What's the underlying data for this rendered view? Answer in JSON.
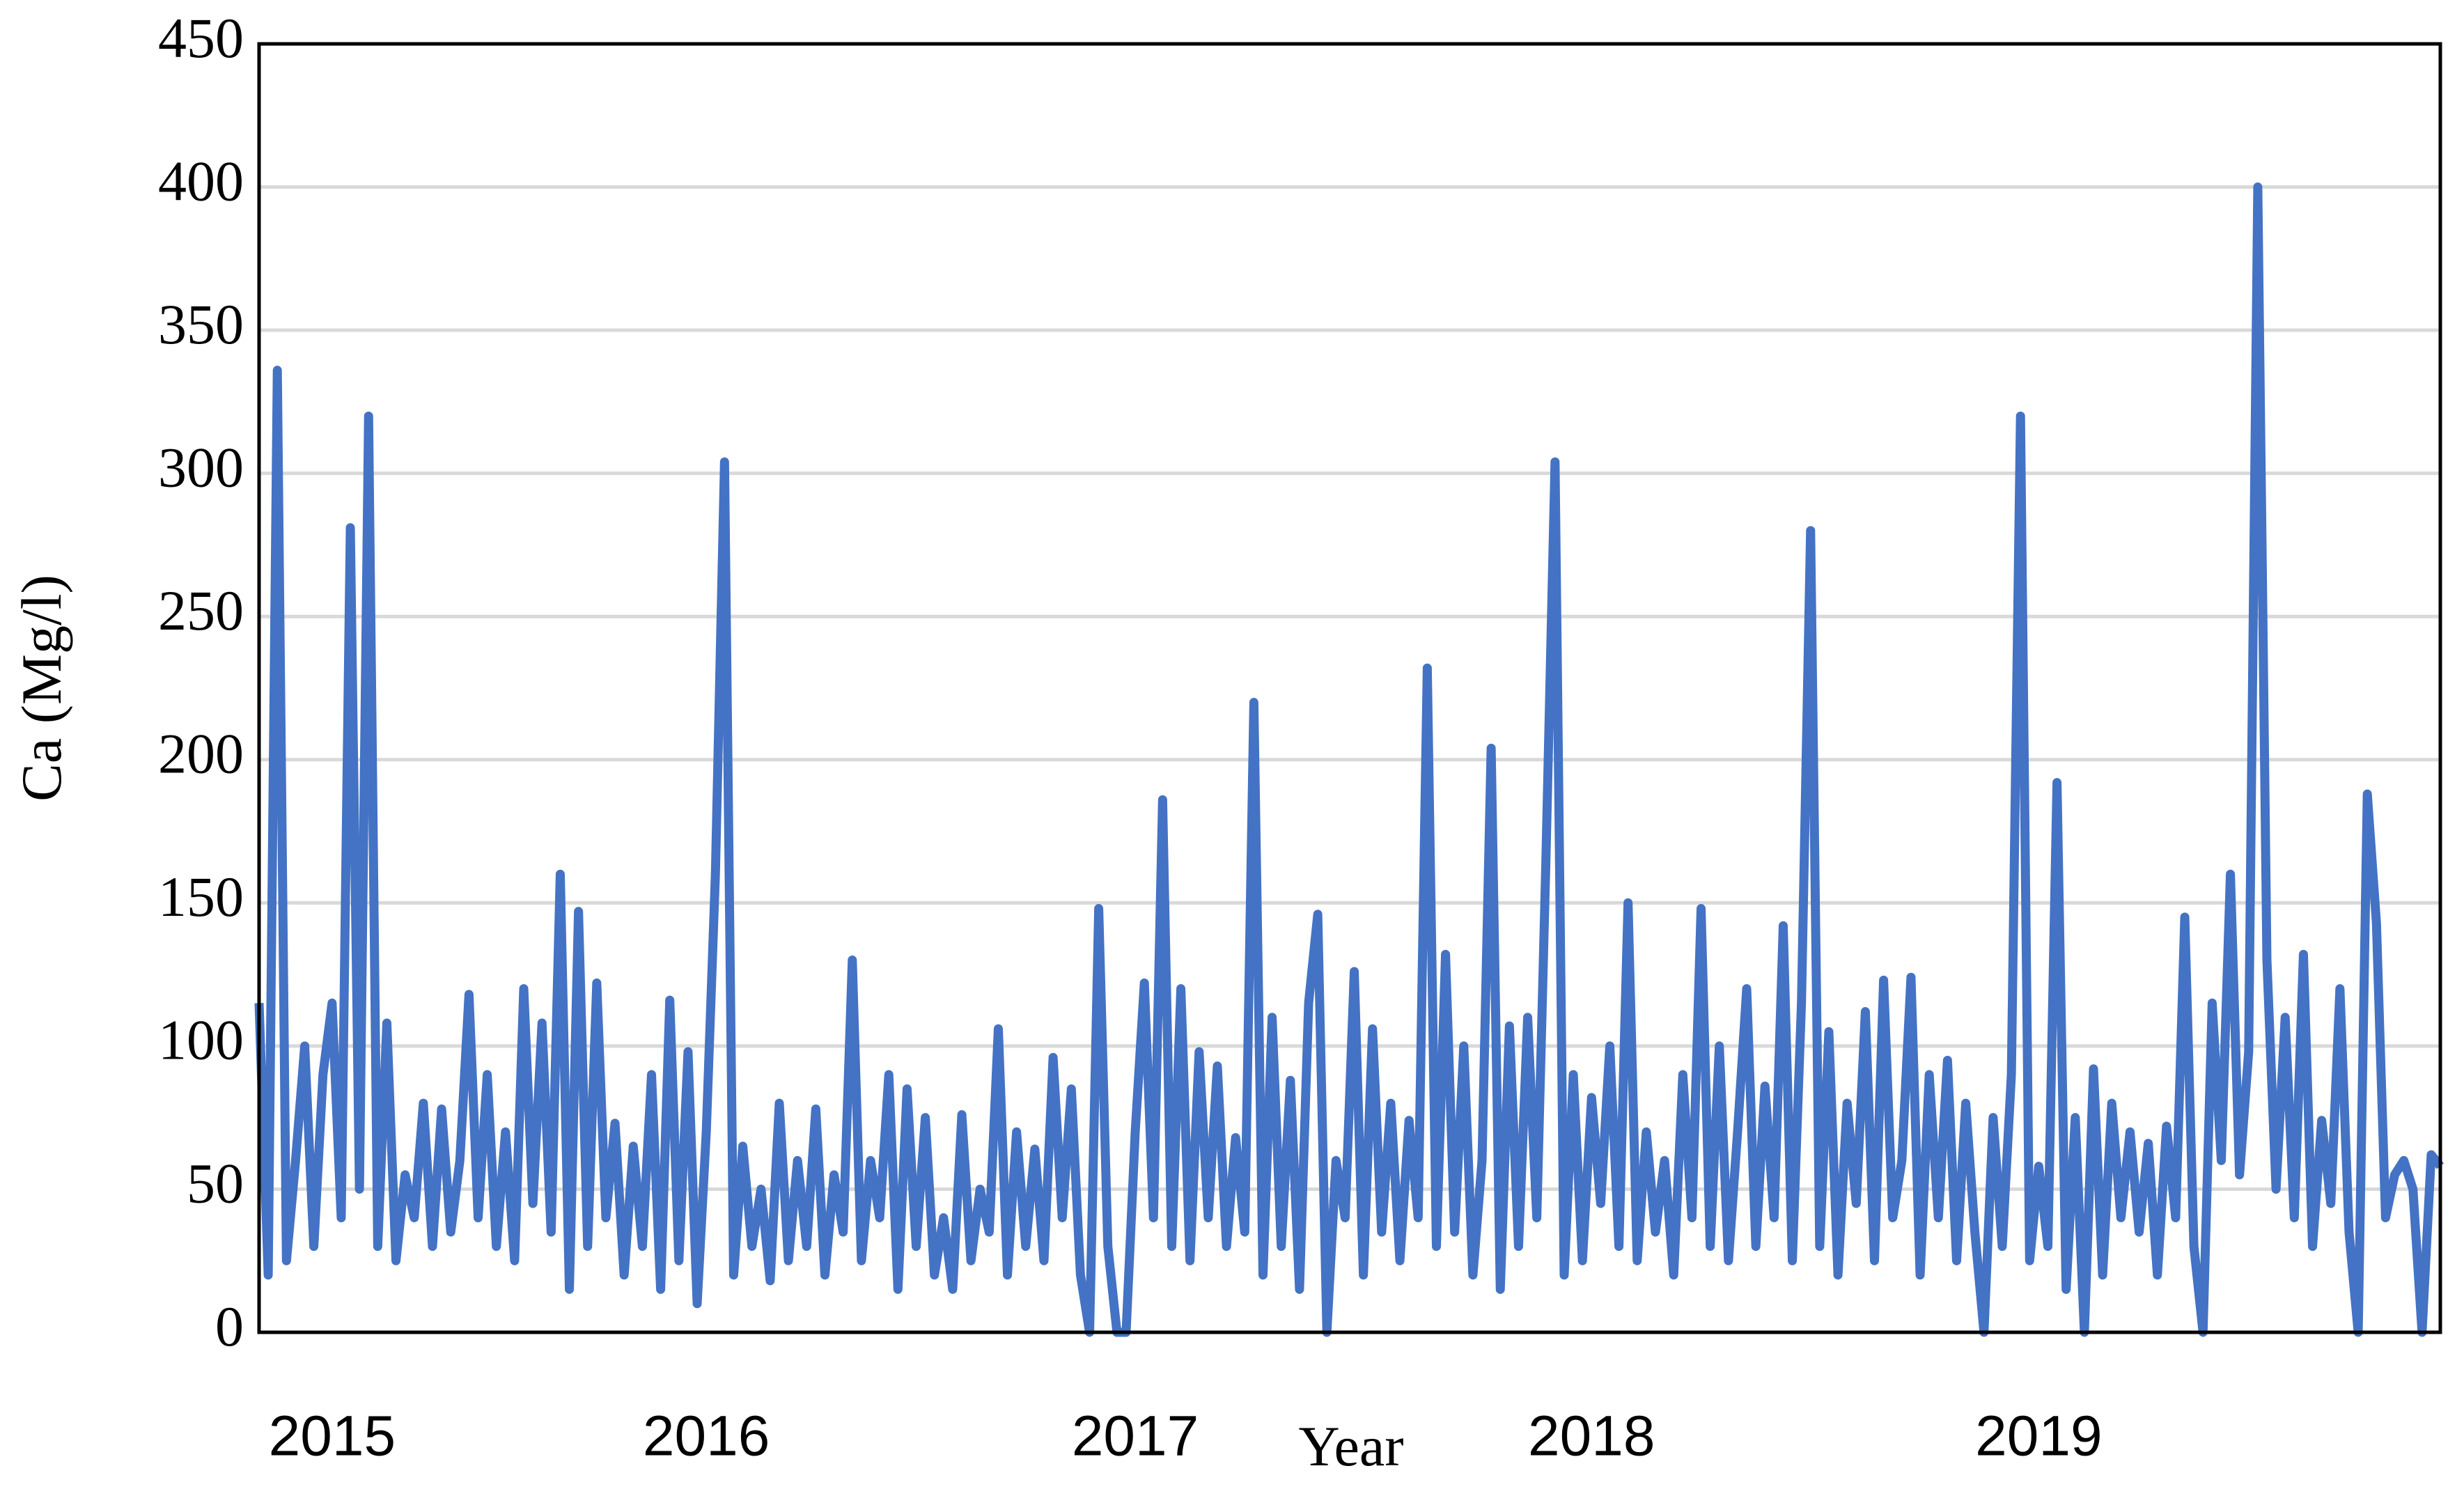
{
  "chart_data": {
    "type": "line",
    "x_label": "Year",
    "y_label": "Ca (Mg/l)",
    "x": [
      0,
      1,
      2,
      3,
      4,
      5,
      6,
      7,
      8,
      9,
      10,
      11,
      12,
      13,
      14,
      15,
      16,
      17,
      18,
      19,
      20,
      21,
      22,
      23,
      24,
      25,
      26,
      27,
      28,
      29,
      30,
      31,
      32,
      33,
      34,
      35,
      36,
      37,
      38,
      39,
      40,
      41,
      42,
      43,
      44,
      45,
      46,
      47,
      48,
      49,
      50,
      51,
      52,
      53,
      54,
      55,
      56,
      57,
      58,
      59,
      60,
      61,
      62,
      63,
      64,
      65,
      66,
      67,
      68,
      69,
      70,
      71,
      72,
      73,
      74,
      75,
      76,
      77,
      78,
      79,
      80,
      81,
      82,
      83,
      84,
      85,
      86,
      87,
      88,
      89,
      90,
      91,
      92,
      93,
      94,
      95,
      96,
      97,
      98,
      99,
      100,
      101,
      102,
      103,
      104,
      105,
      106,
      107,
      108,
      109,
      110,
      111,
      112,
      113,
      114,
      115,
      116,
      117,
      118,
      119,
      120,
      121,
      122,
      123,
      124,
      125,
      126,
      127,
      128,
      129,
      130,
      131,
      132,
      133,
      134,
      135,
      136,
      137,
      138,
      139,
      140,
      141,
      142,
      143,
      144,
      145,
      146,
      147,
      148,
      149,
      150,
      151,
      152,
      153,
      154,
      155,
      156,
      157,
      158,
      159,
      160,
      161,
      162,
      163,
      164,
      165,
      166,
      167,
      168,
      169,
      170,
      171,
      172,
      173,
      174,
      175,
      176,
      177,
      178,
      179,
      180,
      181,
      182,
      183,
      184,
      185,
      186,
      187,
      188,
      189,
      190,
      191,
      192,
      193,
      194,
      195,
      196,
      197,
      198,
      199,
      200,
      201,
      202,
      203,
      204,
      205,
      206,
      207,
      208,
      209,
      210,
      211,
      212,
      213,
      214,
      215,
      216,
      217,
      218,
      219,
      220,
      221,
      222,
      223,
      224,
      225,
      226,
      227,
      228,
      229,
      230,
      231,
      232,
      233,
      234,
      235,
      236,
      237,
      238,
      239
    ],
    "series": [
      {
        "name": "Ca",
        "color": "#4472c4",
        "values": [
          115,
          20,
          336,
          25,
          60,
          100,
          30,
          90,
          115,
          40,
          281,
          50,
          320,
          30,
          108,
          25,
          55,
          40,
          80,
          30,
          78,
          35,
          60,
          118,
          40,
          90,
          30,
          70,
          25,
          120,
          45,
          108,
          35,
          160,
          15,
          147,
          30,
          122,
          40,
          73,
          20,
          65,
          30,
          90,
          15,
          116,
          25,
          98,
          10,
          70,
          160,
          304,
          20,
          65,
          30,
          50,
          18,
          80,
          25,
          60,
          30,
          78,
          20,
          55,
          35,
          130,
          25,
          60,
          40,
          90,
          15,
          85,
          30,
          75,
          20,
          40,
          15,
          76,
          25,
          50,
          35,
          106,
          20,
          70,
          30,
          64,
          25,
          96,
          40,
          85,
          20,
          0,
          148,
          30,
          0,
          0,
          70,
          122,
          40,
          186,
          30,
          120,
          25,
          98,
          40,
          93,
          30,
          68,
          35,
          220,
          20,
          110,
          30,
          88,
          15,
          115,
          146,
          0,
          60,
          40,
          126,
          20,
          106,
          35,
          80,
          25,
          74,
          40,
          232,
          30,
          132,
          35,
          100,
          20,
          60,
          204,
          15,
          107,
          30,
          110,
          40,
          165,
          304,
          20,
          90,
          25,
          82,
          45,
          100,
          30,
          150,
          25,
          70,
          35,
          60,
          20,
          90,
          40,
          148,
          30,
          100,
          25,
          70,
          120,
          30,
          86,
          40,
          142,
          25,
          115,
          280,
          30,
          105,
          20,
          80,
          45,
          112,
          25,
          123,
          40,
          60,
          124,
          20,
          90,
          40,
          95,
          25,
          80,
          35,
          0,
          75,
          30,
          90,
          320,
          25,
          58,
          30,
          192,
          15,
          75,
          0,
          92,
          20,
          80,
          40,
          70,
          35,
          66,
          20,
          72,
          40,
          145,
          30,
          0,
          115,
          60,
          160,
          55,
          98,
          400,
          130,
          50,
          110,
          40,
          132,
          30,
          74,
          45,
          120,
          35,
          0,
          188,
          143,
          40,
          55,
          60,
          50,
          0,
          62,
          58
        ]
      }
    ],
    "xlim": [
      0,
      239
    ],
    "xticks": [
      {
        "value": 8,
        "label": "2015"
      },
      {
        "value": 49,
        "label": "2016"
      },
      {
        "value": 96,
        "label": "2017"
      },
      {
        "value": 146,
        "label": "2018"
      },
      {
        "value": 195,
        "label": "2019"
      }
    ],
    "ylim": [
      0,
      450
    ],
    "yticks": [
      0,
      50,
      100,
      150,
      200,
      250,
      300,
      350,
      400,
      450
    ],
    "grid": true
  }
}
